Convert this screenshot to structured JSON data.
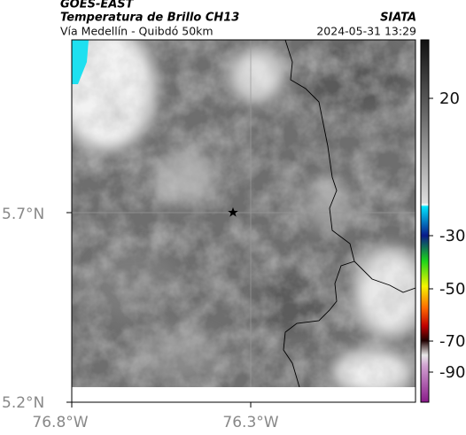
{
  "header": {
    "source": "GOES-EAST",
    "title": "Temperatura de Brillo CH13",
    "agency": "SIATA",
    "subtitle": "Vía Medellín - Quibdó 50km",
    "timestamp": "2024-05-31 13:29"
  },
  "map": {
    "lat_labels": [
      "5.7°N",
      "5.2°N"
    ],
    "lon_labels": [
      "76.8°W",
      "76.3°W"
    ]
  },
  "colorbar": {
    "labels": [
      "20",
      "-30",
      "-50",
      "-70",
      "-90"
    ]
  }
}
